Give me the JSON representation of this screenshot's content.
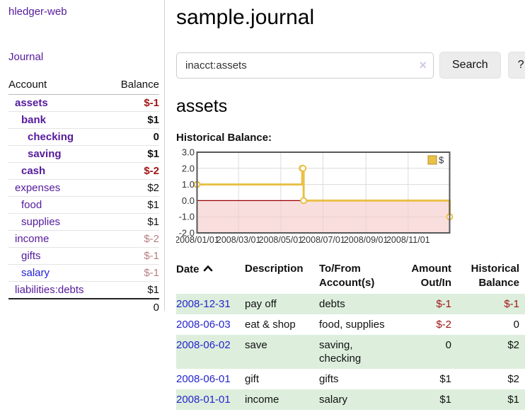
{
  "app": {
    "title": "hledger-web",
    "nav_journal": "Journal"
  },
  "colors": {
    "link_purple": "#551a9b",
    "link_blue": "#2323d2",
    "negative_strong": "#a01616",
    "negative_muted": "#b97e7e",
    "row_stripe_green": "#ddeedd",
    "chart_line_gold": "#e9c048",
    "chart_negative_pink": "#f6c9c9",
    "chart_zero_line": "#990000"
  },
  "sidebar": {
    "header": {
      "account": "Account",
      "balance": "Balance"
    },
    "accounts": [
      {
        "name": "assets",
        "level": 1,
        "bold": true,
        "link_color": "purple",
        "balance": "$-1",
        "balance_class": "neg"
      },
      {
        "name": "bank",
        "level": 2,
        "bold": true,
        "link_color": "purple",
        "balance": "$1",
        "balance_class": ""
      },
      {
        "name": "checking",
        "level": 3,
        "bold": true,
        "link_color": "purple",
        "balance": "0",
        "balance_class": ""
      },
      {
        "name": "saving",
        "level": 3,
        "bold": true,
        "link_color": "purple",
        "balance": "$1",
        "balance_class": ""
      },
      {
        "name": "cash",
        "level": 2,
        "bold": true,
        "link_color": "purple",
        "balance": "$-2",
        "balance_class": "neg"
      },
      {
        "name": "expenses",
        "level": 1,
        "bold": false,
        "link_color": "purple",
        "balance": "$2",
        "balance_class": ""
      },
      {
        "name": "food",
        "level": 2,
        "bold": false,
        "link_color": "purple",
        "balance": "$1",
        "balance_class": ""
      },
      {
        "name": "supplies",
        "level": 2,
        "bold": false,
        "link_color": "purple",
        "balance": "$1",
        "balance_class": ""
      },
      {
        "name": "income",
        "level": 1,
        "bold": false,
        "link_color": "purple",
        "balance": "$-2",
        "balance_class": "muted"
      },
      {
        "name": "gifts",
        "level": 2,
        "bold": false,
        "link_color": "purple",
        "balance": "$-1",
        "balance_class": "muted"
      },
      {
        "name": "salary",
        "level": 2,
        "bold": false,
        "link_color": "blue",
        "balance": "$-1",
        "balance_class": "muted"
      },
      {
        "name": "liabilities:debts",
        "level": 1,
        "bold": false,
        "link_color": "purple",
        "balance": "$1",
        "balance_class": ""
      }
    ],
    "total": "0"
  },
  "main": {
    "title": "sample.journal",
    "search": {
      "value": "inacct:assets",
      "clear_icon": "×",
      "button_label": "Search",
      "help_label": "?"
    },
    "account_heading": "assets",
    "chart_label": "Historical Balance:"
  },
  "chart_data": {
    "type": "line",
    "step": true,
    "title": "Historical Balance",
    "series": [
      {
        "name": "$",
        "color": "#e9c048",
        "points": [
          [
            "2008-01-01",
            1.0
          ],
          [
            "2008-06-01",
            2.0
          ],
          [
            "2008-06-02",
            2.0
          ],
          [
            "2008-06-03",
            0.0
          ],
          [
            "2008-12-31",
            -1.0
          ]
        ]
      }
    ],
    "x_range": [
      "2008-01-01",
      "2008-12-31"
    ],
    "ylim": [
      -2.0,
      3.0
    ],
    "y_ticks": [
      3.0,
      2.0,
      1.0,
      0.0,
      -1.0,
      -2.0
    ],
    "y_tick_labels": [
      "3.0",
      "2.0",
      "1.0",
      "0.0",
      "-1.0",
      "-2.0"
    ],
    "x_ticks": [
      {
        "date": "2008-01-01",
        "label": "2008/01/01"
      },
      {
        "date": "2008-03-01",
        "label": "2008/03/01"
      },
      {
        "date": "2008-05-01",
        "label": "2008/05/01"
      },
      {
        "date": "2008-07-01",
        "label": "2008/07/01"
      },
      {
        "date": "2008-09-01",
        "label": "2008/09/01"
      },
      {
        "date": "2008-11-01",
        "label": "2008/11/01"
      }
    ],
    "grid": true,
    "negative_region_color": "#f6c9c9",
    "zero_line_color": "#990000",
    "legend": {
      "label": "$",
      "position": "top-right"
    }
  },
  "register": {
    "headers": [
      {
        "label": "Date",
        "sort": "asc"
      },
      {
        "label": "Description"
      },
      {
        "label": "To/From Account(s)"
      },
      {
        "label": "Amount Out/In",
        "align": "right"
      },
      {
        "label": "Historical Balance",
        "align": "right"
      }
    ],
    "rows": [
      {
        "date": "2008-12-31",
        "description": "pay off",
        "accounts": "debts",
        "amount": "$-1",
        "amount_class": "neg",
        "balance": "$-1",
        "balance_class": "neg"
      },
      {
        "date": "2008-06-03",
        "description": "eat & shop",
        "accounts": "food, supplies",
        "amount": "$-2",
        "amount_class": "neg",
        "balance": "0",
        "balance_class": ""
      },
      {
        "date": "2008-06-02",
        "description": "save",
        "accounts": "saving, checking",
        "amount": "0",
        "amount_class": "",
        "balance": "$2",
        "balance_class": ""
      },
      {
        "date": "2008-06-01",
        "description": "gift",
        "accounts": "gifts",
        "amount": "$1",
        "amount_class": "",
        "balance": "$2",
        "balance_class": ""
      },
      {
        "date": "2008-01-01",
        "description": "income",
        "accounts": "salary",
        "amount": "$1",
        "amount_class": "",
        "balance": "$1",
        "balance_class": ""
      }
    ]
  }
}
